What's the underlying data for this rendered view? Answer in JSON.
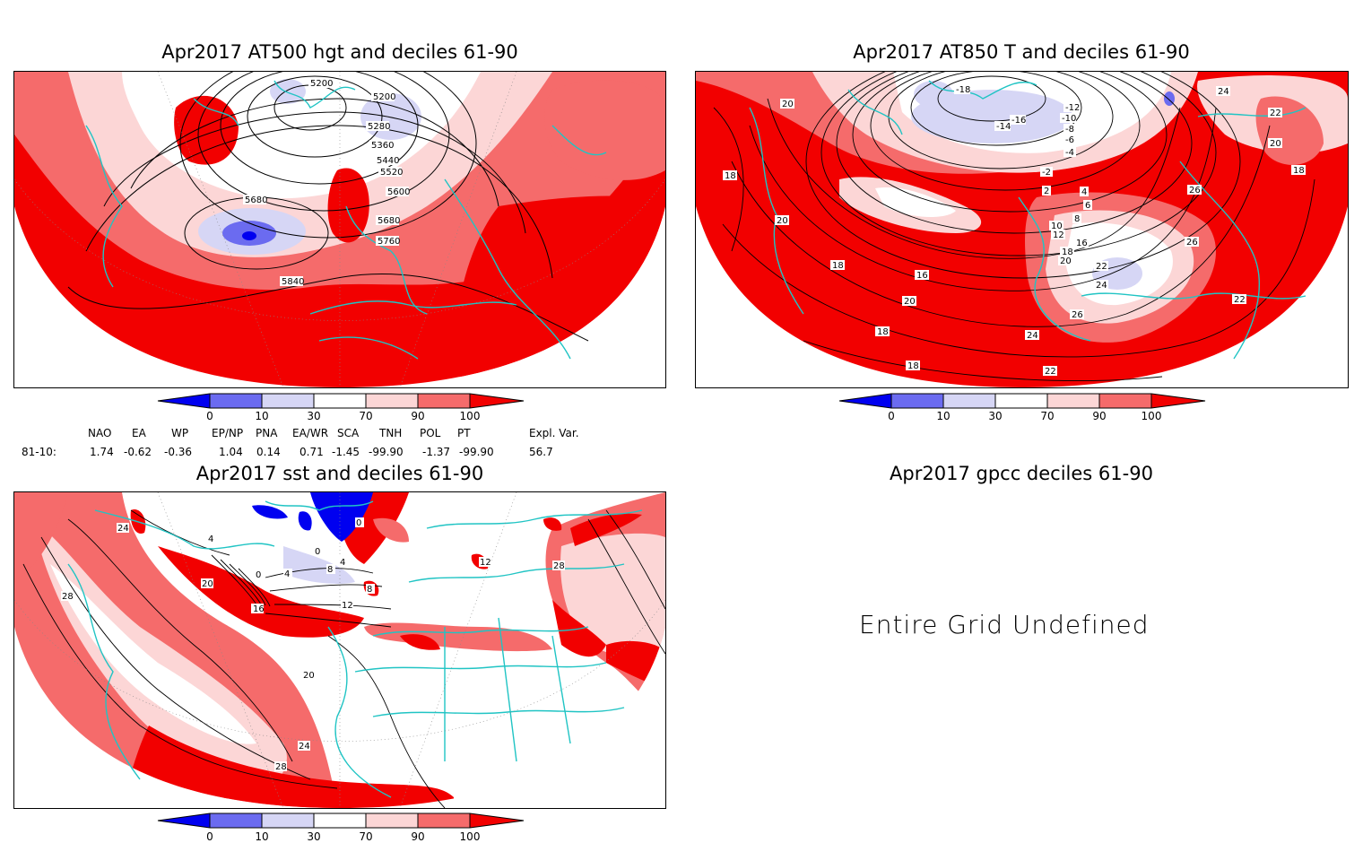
{
  "colors": {
    "dark_red": "#f20000",
    "mid_red": "#f56b6b",
    "light_red": "#fcd6d6",
    "dark_blue": "#0000f0",
    "mid_blue": "#6b6bf0",
    "light_blue": "#d6d6f5",
    "coast": "#20c4c4",
    "contour": "#000000"
  },
  "panels": {
    "p1": {
      "title": "Apr2017 AT500 hgt and deciles 61-90",
      "contour_labels": [
        "5200",
        "5200",
        "5280",
        "5360",
        "5440",
        "5520",
        "5600",
        "5680",
        "5680",
        "5760",
        "5840"
      ]
    },
    "p2": {
      "title": "Apr2017 AT850 T and deciles 61-90",
      "contour_labels": [
        "-18",
        "-16",
        "-14",
        "-12",
        "-10",
        "-8",
        "-6",
        "-4",
        "-2",
        "2",
        "4",
        "6",
        "8",
        "10",
        "12",
        "16",
        "18",
        "20",
        "22",
        "24",
        "26",
        "16",
        "18",
        "20",
        "18",
        "20",
        "22",
        "24",
        "26",
        "22",
        "20",
        "18",
        "18",
        "20",
        "22",
        "24",
        "26",
        "18"
      ]
    },
    "p3": {
      "title": "Apr2017 sst and deciles 61-90",
      "contour_labels": [
        "24",
        "28",
        "4",
        "0",
        "20",
        "16",
        "4",
        "0",
        "4",
        "8",
        "12",
        "20",
        "24",
        "28",
        "12",
        "8",
        "0",
        "28"
      ]
    },
    "p4": {
      "title": "Apr2017 gpcc deciles 61-90",
      "message": "Entire Grid Undefined"
    }
  },
  "colorbar": {
    "ticks": [
      "0",
      "10",
      "30",
      "70",
      "90",
      "100"
    ]
  },
  "indices": {
    "header": [
      "NAO",
      "EA",
      "WP",
      "EP/NP",
      "PNA",
      "EA/WR",
      "SCA",
      "TNH",
      "POL",
      "PT",
      "Expl. Var."
    ],
    "row_label": "81-10:",
    "values": [
      "1.74",
      "-0.62",
      "-0.36",
      "1.04",
      "0.14",
      "0.71",
      "-1.45",
      "-99.90",
      "-1.37",
      "-99.90",
      "56.7"
    ]
  }
}
